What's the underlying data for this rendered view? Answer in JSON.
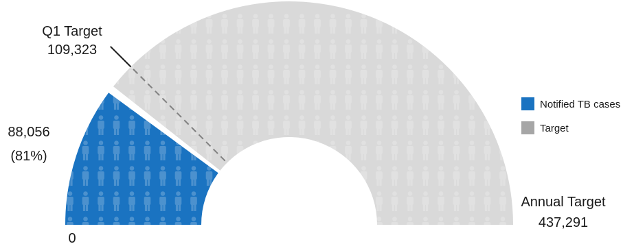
{
  "chart_data": {
    "type": "gauge",
    "min_label": "0",
    "max_value": 437291,
    "max_label_title": "Annual Target",
    "max_label_value": "437,291",
    "marker": {
      "title": "Q1 Target",
      "value": 109323,
      "value_label": "109,323"
    },
    "actual": {
      "value": 88056,
      "value_label": "88,056",
      "percent_label": "(81%)"
    },
    "legend": [
      {
        "label": "Notified TB cases",
        "color": "#1a73c1"
      },
      {
        "label": "Target",
        "color": "#a6a6a6"
      }
    ],
    "colors": {
      "actual": "#1a73c1",
      "target": "#d9d9d9",
      "marker_line": "#808080",
      "icon": "#ffffff"
    }
  }
}
